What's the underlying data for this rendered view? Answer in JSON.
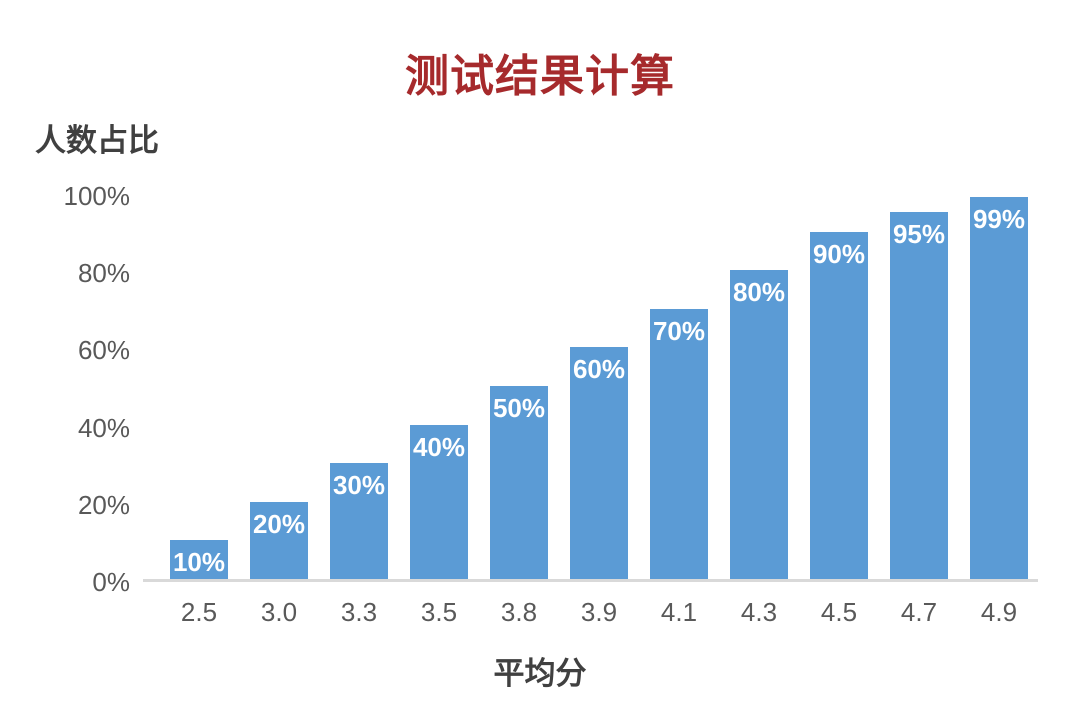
{
  "title": "测试结果计算",
  "colors": {
    "title": "#A62A2C",
    "bar": "#5B9BD5",
    "bar_label": "#FFFFFF",
    "axis_text": "#595959",
    "axis_title": "#404040",
    "axis_line": "#D9D9D9"
  },
  "chart_data": {
    "type": "bar",
    "title": "测试结果计算",
    "xlabel": "平均分",
    "ylabel": "人数占比",
    "categories": [
      "2.5",
      "3.0",
      "3.3",
      "3.5",
      "3.8",
      "3.9",
      "4.1",
      "4.3",
      "4.5",
      "4.7",
      "4.9"
    ],
    "values": [
      10,
      20,
      30,
      40,
      50,
      60,
      70,
      80,
      90,
      95,
      99
    ],
    "bar_labels": [
      "10%",
      "20%",
      "30%",
      "40%",
      "50%",
      "60%",
      "70%",
      "80%",
      "90%",
      "95%",
      "99%"
    ],
    "y_ticks": [
      {
        "label": "0%",
        "value": 0
      },
      {
        "label": "20%",
        "value": 20
      },
      {
        "label": "40%",
        "value": 40
      },
      {
        "label": "60%",
        "value": 60
      },
      {
        "label": "80%",
        "value": 80
      },
      {
        "label": "100%",
        "value": 100
      }
    ],
    "ylim": [
      0,
      100
    ],
    "grid": false,
    "legend": false,
    "data_label_position": "inside-top"
  }
}
